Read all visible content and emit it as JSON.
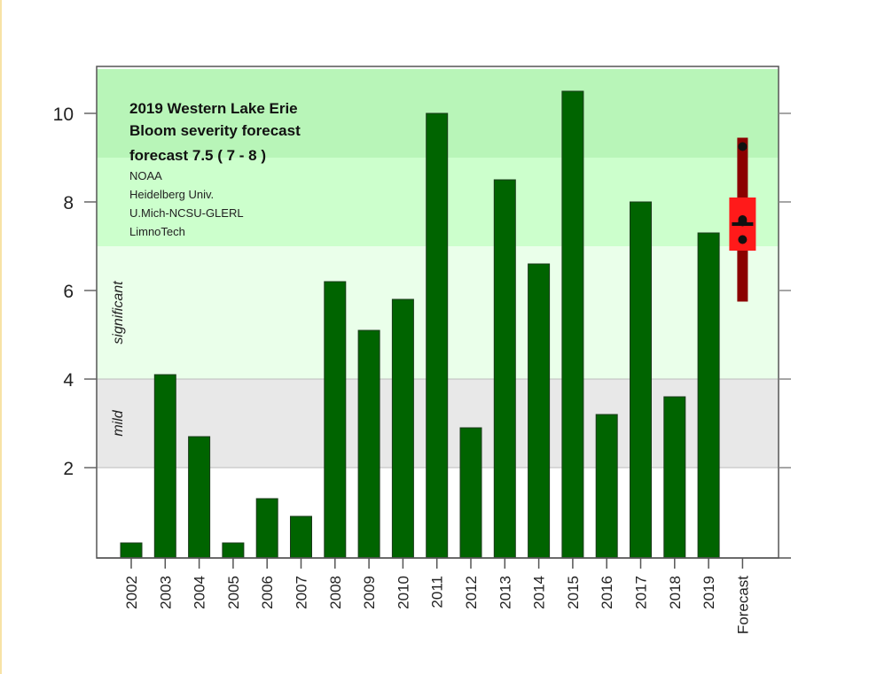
{
  "chart_data": {
    "type": "bar",
    "title": "2019  Western Lake Erie Bloom severity forecast",
    "subtitle": "forecast  7.5 ( 7 - 8 )",
    "credits": [
      "NOAA",
      "Heidelberg Univ.",
      "U.Mich-NCSU-GLERL",
      "LimnoTech"
    ],
    "xlabel": "",
    "ylabel": "",
    "ylim": [
      0,
      11
    ],
    "yticks": [
      2,
      4,
      6,
      8,
      10
    ],
    "categories": [
      "2002",
      "2003",
      "2004",
      "2005",
      "2006",
      "2007",
      "2008",
      "2009",
      "2010",
      "2011",
      "2012",
      "2013",
      "2014",
      "2015",
      "2016",
      "2017",
      "2018",
      "2019",
      "Forecast"
    ],
    "values": [
      0.3,
      4.1,
      2.7,
      0.3,
      1.3,
      0.9,
      6.2,
      5.1,
      5.8,
      10.0,
      2.9,
      8.5,
      6.6,
      10.5,
      3.2,
      8.0,
      3.6,
      7.3,
      null
    ],
    "bar_color": "#006400",
    "bands": [
      {
        "label": "mild",
        "from": 2,
        "to": 4,
        "color": "#e8e8e8"
      },
      {
        "label": "significant",
        "from": 4,
        "to": 7,
        "color": "#eaffea"
      },
      {
        "label": "",
        "from": 7,
        "to": 9,
        "color": "#ccffcc"
      },
      {
        "label": "",
        "from": 9,
        "to": 11,
        "color": "#b8f5b8"
      }
    ],
    "forecast": {
      "estimate": 7.5,
      "range": [
        7,
        8
      ],
      "box": [
        6.9,
        8.1
      ],
      "whisker": [
        5.75,
        9.45
      ],
      "model_points": [
        9.25,
        7.6,
        7.55,
        7.15
      ],
      "box_color": "#ff1a1a",
      "whisker_color": "#8b0000"
    }
  }
}
